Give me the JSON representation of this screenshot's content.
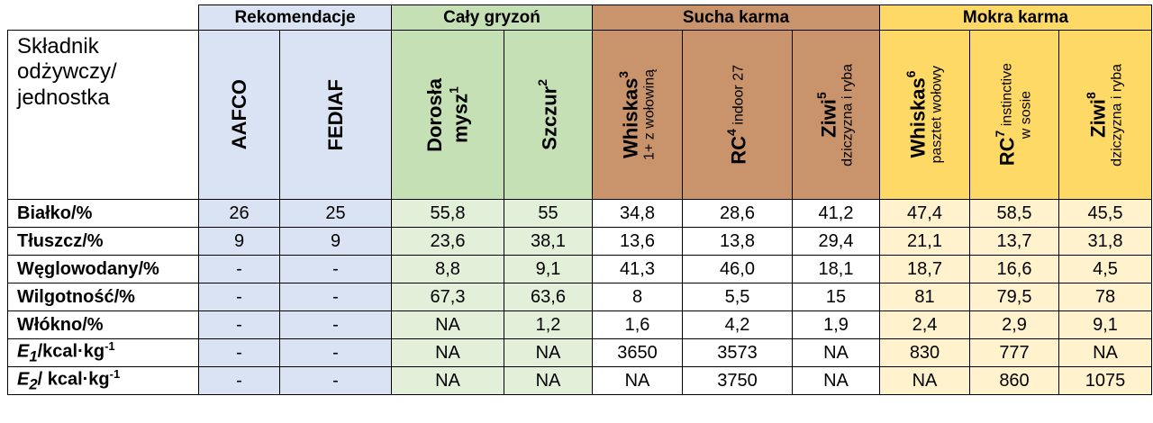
{
  "groups": {
    "rek": "Rekomendacje",
    "gry": "Cały gryzoń",
    "suc": "Sucha karma",
    "mok": "Mokra karma"
  },
  "corner": [
    "Składnik",
    "odżywczy/",
    "jednostka"
  ],
  "cols": [
    {
      "main": "AAFCO",
      "sup": "",
      "sub": ""
    },
    {
      "main": "FEDIAF",
      "sup": "",
      "sub": ""
    },
    {
      "main": "Dorosła",
      "main2": "mysz",
      "sup": "1",
      "sub": ""
    },
    {
      "main": "Szczur",
      "sup": "2",
      "sub": ""
    },
    {
      "main": "Whiskas",
      "sup": "3",
      "sub": "1+ z wołowiną"
    },
    {
      "main": "RC",
      "sup": "4",
      "sub": "indoor 27"
    },
    {
      "main": "Ziwi",
      "sup": "5",
      "sub": "dziczyzna i ryba"
    },
    {
      "main": "Whiskas",
      "sup": "6",
      "sub": "pasztet wołowy"
    },
    {
      "main": "RC",
      "sup": "7",
      "sub": "instinctive",
      "sub2": "w sosie"
    },
    {
      "main": "Ziwi",
      "sup": "8",
      "sub": "dziczyzna i ryba"
    }
  ],
  "rows": [
    {
      "label": "Białko/%",
      "values": [
        "26",
        "25",
        "55,8",
        "55",
        "34,8",
        "28,6",
        "41,2",
        "47,4",
        "58,5",
        "45,5"
      ]
    },
    {
      "label": "Tłuszcz/%",
      "values": [
        "9",
        "9",
        "23,6",
        "38,1",
        "13,6",
        "13,8",
        "29,4",
        "21,1",
        "13,7",
        "31,8"
      ]
    },
    {
      "label": "Węglowodany/%",
      "values": [
        "-",
        "-",
        "8,8",
        "9,1",
        "41,3",
        "46,0",
        "18,1",
        "18,7",
        "16,6",
        "4,5"
      ]
    },
    {
      "label": "Wilgotność/%",
      "values": [
        "-",
        "-",
        "67,3",
        "63,6",
        "8",
        "5,5",
        "15",
        "81",
        "79,5",
        "78"
      ]
    },
    {
      "label": "Włókno/%",
      "values": [
        "-",
        "-",
        "NA",
        "1,2",
        "1,6",
        "4,2",
        "1,9",
        "2,4",
        "2,9",
        "9,1"
      ]
    },
    {
      "label_sym": "E",
      "label_sub": "1",
      "label_rest": "/kcal·kg",
      "label_sup": "-1",
      "values": [
        "-",
        "-",
        "NA",
        "NA",
        "3650",
        "3573",
        "NA",
        "830",
        "777",
        "NA"
      ]
    },
    {
      "label_sym": "E",
      "label_sub": "2",
      "label_rest": "/ kcal·kg",
      "label_sup": "-1",
      "values": [
        "-",
        "-",
        "NA",
        "NA",
        "NA",
        "3750",
        "NA",
        "NA",
        "860",
        "1075"
      ]
    }
  ],
  "colors": {
    "rekomendacje": "#dae3f3",
    "gryzon_header": "#c5e0b4",
    "gryzon_data": "#e2f0d9",
    "sucha": "#c9936b",
    "mokra_header": "#ffd966",
    "mokra_data": "#fff2cc"
  }
}
